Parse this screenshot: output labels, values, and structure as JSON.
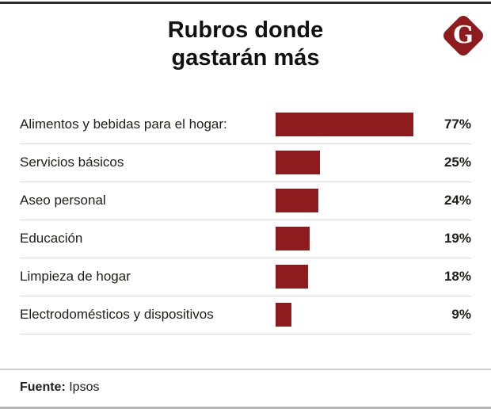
{
  "header": {
    "title_line1": "Rubros donde",
    "title_line2": "gastarán más",
    "logo_letter": "G"
  },
  "chart_data": {
    "type": "bar",
    "orientation": "horizontal",
    "title": "Rubros donde gastarán más",
    "categories": [
      "Alimentos y bebidas para el hogar:",
      "Servicios básicos",
      "Aseo personal",
      "Educación",
      "Limpieza de hogar",
      "Electrodomésticos y dispositivos"
    ],
    "values": [
      77,
      25,
      24,
      19,
      18,
      9
    ],
    "value_labels": [
      "77%",
      "25%",
      "24%",
      "19%",
      "18%",
      "9%"
    ],
    "unit": "%",
    "xlim": [
      0,
      100
    ],
    "bar_color": "#8e1b1e",
    "grid": false,
    "legend": false
  },
  "footer": {
    "source_label": "Fuente:",
    "source_value": "Ipsos"
  },
  "colors": {
    "bar": "#8e1b1e",
    "logo": "#8e1b1e",
    "text": "#1d1d1b",
    "separator": "#dcdcdc",
    "rule_dark": "#2b2b2b",
    "rule_light": "#b5b5b5"
  }
}
